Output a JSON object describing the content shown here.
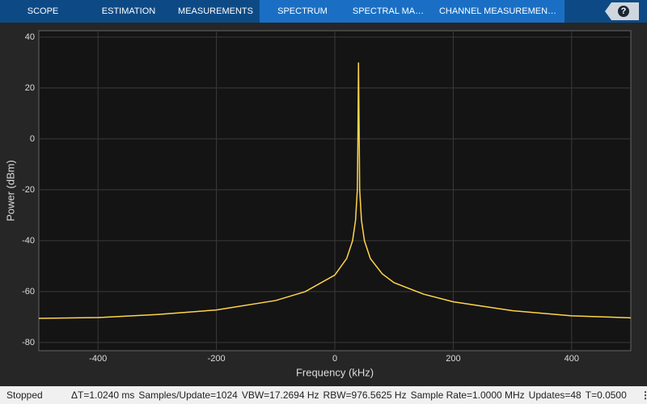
{
  "toolbar": {
    "tabs": [
      "SCOPE",
      "ESTIMATION",
      "MEASUREMENTS",
      "SPECTRUM",
      "SPECTRAL MA…",
      "CHANNEL MEASUREMEN…"
    ],
    "help": "?"
  },
  "chart_data": {
    "type": "line",
    "xlabel": "Frequency (kHz)",
    "ylabel": "Power (dBm)",
    "x": [
      -500,
      -400,
      -300,
      -200,
      -100,
      -50,
      0,
      20,
      30,
      35,
      38,
      39,
      40,
      41,
      42,
      45,
      50,
      60,
      80,
      100,
      150,
      200,
      300,
      400,
      500
    ],
    "series": [
      {
        "color": "#ffd54a",
        "values": [
          -70.5,
          -70.2,
          -69,
          -67.2,
          -63.5,
          -60,
          -53.5,
          -47,
          -40,
          -32,
          -20,
          0,
          30,
          5,
          -20,
          -32,
          -40,
          -47,
          -53,
          -56.5,
          -61,
          -64,
          -67.5,
          -69.5,
          -70.3
        ]
      }
    ],
    "xlim": [
      -500,
      500
    ],
    "ylim": [
      -83.2,
      42.5
    ],
    "xticks": [
      -400,
      -200,
      0,
      200,
      400
    ],
    "yticks": [
      -80,
      -60,
      -40,
      -20,
      0,
      20,
      40
    ],
    "grid": true
  },
  "status": {
    "state": "Stopped",
    "items": [
      "ΔT=1.0240 ms",
      "Samples/Update=1024",
      "VBW=17.2694 Hz",
      "RBW=976.5625 Hz",
      "Sample Rate=1.0000 MHz",
      "Updates=48",
      "T=0.0500"
    ]
  }
}
